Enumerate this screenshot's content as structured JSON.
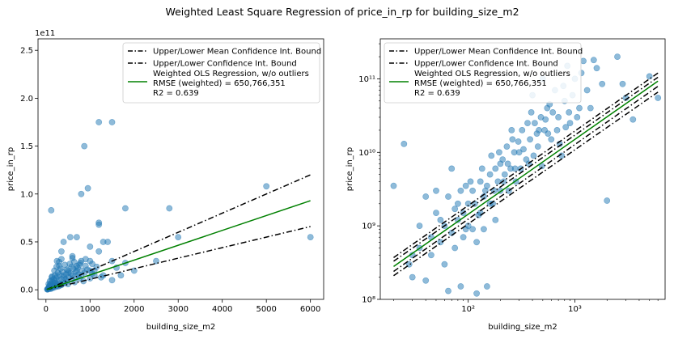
{
  "figure_title": "Weighted Least Square Regression of price_in_rp for building_size_m2",
  "colors": {
    "points": "#1f77b4",
    "fit": "#008000",
    "bounds": "#000000"
  },
  "chart_data": [
    {
      "type": "scatter",
      "scale": "linear",
      "offset_text": "1e11",
      "xlabel": "building_size_m2",
      "ylabel": "price_in_rp",
      "xlim": [
        -180,
        6300
      ],
      "ylim": [
        -10000000000.0,
        262000000000.0
      ],
      "x_ticks": [
        0,
        1000,
        2000,
        3000,
        4000,
        5000,
        6000
      ],
      "x_tick_labels": [
        "0",
        "1000",
        "2000",
        "3000",
        "4000",
        "5000",
        "6000"
      ],
      "y_ticks": [
        0,
        50000000000.0,
        100000000000.0,
        150000000000.0,
        200000000000.0,
        250000000000.0
      ],
      "y_tick_labels": [
        "0.0",
        "0.5",
        "1.0",
        "1.5",
        "2.0",
        "2.5"
      ],
      "legend": {
        "position": "top-right",
        "entries": [
          {
            "label": "Upper/Lower Mean Confidence Int. Bound",
            "style": "dashdot",
            "color": "#000000"
          },
          {
            "label": "Upper/Lower Confidence Int. Bound",
            "style": "dashdot",
            "color": "#000000"
          },
          {
            "label": "Weighted OLS Regression, w/o outliers",
            "style": "solid",
            "color": "#008000"
          }
        ],
        "extra_lines": [
          "RMSE (weighted) = 650,766,351",
          "R2 = 0.639"
        ]
      },
      "lines": {
        "x": [
          20,
          6000
        ],
        "fit": [
          290000000.0,
          93000000000.0
        ],
        "upper": [
          370000000.0,
          120000000000.0
        ],
        "lower": [
          210000000.0,
          66000000000.0
        ]
      },
      "points": [
        [
          120,
          83000000000.0
        ],
        [
          800,
          100000000000.0
        ],
        [
          950,
          106000000000.0
        ],
        [
          870,
          150000000000.0
        ],
        [
          1200,
          175000000000.0
        ],
        [
          1500,
          175000000000.0
        ],
        [
          1200,
          70000000000.0
        ],
        [
          1200,
          68000000000.0
        ],
        [
          1800,
          85000000000.0
        ],
        [
          2800,
          85000000000.0
        ],
        [
          5000,
          108000000000.0
        ],
        [
          6000,
          55000000000.0
        ],
        [
          3000,
          55000000000.0
        ],
        [
          1300,
          50000000000.0
        ],
        [
          1800,
          28000000000.0
        ],
        [
          2500,
          30000000000.0
        ],
        [
          700,
          55000000000.0
        ],
        [
          550,
          55000000000.0
        ],
        [
          400,
          50000000000.0
        ],
        [
          350,
          40000000000.0
        ],
        [
          1000,
          45000000000.0
        ],
        [
          1200,
          40000000000.0
        ],
        [
          1400,
          50000000000.0
        ],
        [
          1500,
          30000000000.0
        ],
        [
          600,
          35000000000.0
        ],
        [
          300,
          25000000000.0
        ],
        [
          250,
          30000000000.0
        ],
        [
          800,
          30000000000.0
        ],
        [
          1000,
          30000000000.0
        ],
        [
          500,
          20000000000.0
        ],
        [
          700,
          25000000000.0
        ],
        [
          900,
          25000000000.0
        ],
        [
          1100,
          20000000000.0
        ],
        [
          1300,
          15000000000.0
        ],
        [
          1500,
          10000000000.0
        ],
        [
          200,
          15000000000.0
        ],
        [
          400,
          15000000000.0
        ],
        [
          600,
          15000000000.0
        ],
        [
          800,
          15000000000.0
        ],
        [
          1000,
          12000000000.0
        ],
        [
          300,
          10000000000.0
        ],
        [
          450,
          11000000000.0
        ],
        [
          650,
          8000000000.0
        ],
        [
          850,
          9000000000.0
        ],
        [
          150,
          8000000000.0
        ],
        [
          250,
          6000000000.0
        ],
        [
          350,
          5000000000.0
        ],
        [
          500,
          6000000000.0
        ],
        [
          100,
          5000000000.0
        ],
        [
          180,
          4000000000.0
        ],
        [
          80,
          3000000000.0
        ],
        [
          120,
          2500000000.0
        ],
        [
          60,
          2000000000.0
        ],
        [
          90,
          1500000000.0
        ],
        [
          40,
          1000000000.0
        ],
        [
          70,
          1200000000.0
        ],
        [
          50,
          800000000.0
        ],
        [
          30,
          500000000.0
        ],
        [
          110,
          1000000000.0
        ],
        [
          140,
          2000000000.0
        ],
        [
          220,
          3000000000.0
        ],
        [
          280,
          3500000000.0
        ],
        [
          320,
          4500000000.0
        ],
        [
          380,
          6500000000.0
        ],
        [
          420,
          7000000000.0
        ],
        [
          480,
          9000000000.0
        ],
        [
          520,
          13000000000.0
        ],
        [
          560,
          17000000000.0
        ],
        [
          620,
          22000000000.0
        ],
        [
          680,
          19000000000.0
        ],
        [
          720,
          23000000000.0
        ],
        [
          760,
          12000000000.0
        ],
        [
          820,
          20000000000.0
        ],
        [
          880,
          18000000000.0
        ],
        [
          940,
          21000000000.0
        ],
        [
          1050,
          17000000000.0
        ],
        [
          1150,
          24000000000.0
        ],
        [
          1250,
          13000000000.0
        ],
        [
          230,
          12000000000.0
        ],
        [
          270,
          18000000000.0
        ],
        [
          330,
          22000000000.0
        ],
        [
          370,
          19000000000.0
        ],
        [
          430,
          26000000000.0
        ],
        [
          470,
          21000000000.0
        ],
        [
          540,
          27000000000.0
        ],
        [
          580,
          24000000000.0
        ],
        [
          640,
          29000000000.0
        ],
        [
          700,
          20000000000.0
        ],
        [
          760,
          26000000000.0
        ],
        [
          130,
          10000000000.0
        ],
        [
          160,
          6000000000.0
        ],
        [
          200,
          9000000000.0
        ],
        [
          260,
          14000000000.0
        ],
        [
          310,
          16000000000.0
        ],
        [
          360,
          11000000000.0
        ],
        [
          410,
          13000000000.0
        ],
        [
          460,
          16000000000.0
        ],
        [
          510,
          18000000000.0
        ],
        [
          590,
          11000000000.0
        ],
        [
          670,
          14000000000.0
        ],
        [
          740,
          16000000000.0
        ],
        [
          780,
          28000000000.0
        ],
        [
          60,
          6000000000.0
        ],
        [
          90,
          9000000000.0
        ],
        [
          140,
          14000000000.0
        ],
        [
          190,
          20000000000.0
        ],
        [
          240,
          24000000000.0
        ],
        [
          300,
          29000000000.0
        ],
        [
          350,
          32000000000.0
        ],
        [
          1050,
          27000000000.0
        ],
        [
          1100,
          15000000000.0
        ],
        [
          600,
          33000000000.0
        ],
        [
          900,
          32000000000.0
        ],
        [
          1000,
          20000000000.0
        ],
        [
          100,
          3000000000.0
        ],
        [
          150,
          3500000000.0
        ],
        [
          170,
          2200000000.0
        ],
        [
          210,
          5000000000.0
        ],
        [
          250,
          4000000000.0
        ],
        [
          290,
          6500000000.0
        ],
        [
          80,
          1500000000.0
        ],
        [
          45,
          700000000.0
        ],
        [
          35,
          350000000.0
        ],
        [
          55,
          1200000000.0
        ],
        [
          75,
          4000000000.0
        ],
        [
          95,
          6000000000.0
        ],
        [
          1600,
          23000000000.0
        ],
        [
          1700,
          15000000000.0
        ],
        [
          2000,
          20000000000.0
        ],
        [
          130,
          13000000000.0
        ],
        [
          175,
          11000000000.0
        ],
        [
          205,
          7000000000.0
        ]
      ]
    },
    {
      "type": "scatter",
      "scale": "log",
      "xlabel": "building_size_m2",
      "ylabel": "price_in_rp",
      "xlim": [
        15,
        7000
      ],
      "ylim": [
        100000000.0,
        350000000000.0
      ],
      "x_ticks": [
        100,
        1000
      ],
      "x_tick_labels": [
        "10²",
        "10³"
      ],
      "y_ticks": [
        100000000.0,
        1000000000.0,
        10000000000.0,
        100000000000.0
      ],
      "y_tick_labels": [
        "10⁸",
        "10⁹",
        "10¹⁰",
        "10¹¹"
      ],
      "legend": {
        "position": "top-left",
        "entries": [
          {
            "label": "Upper/Lower Mean Confidence Int. Bound",
            "style": "dashdot",
            "color": "#000000"
          },
          {
            "label": "Upper/Lower Confidence Int. Bound",
            "style": "dashdot",
            "color": "#000000"
          },
          {
            "label": "Weighted OLS Regression, w/o outliers",
            "style": "solid",
            "color": "#008000"
          }
        ],
        "extra_lines": [
          "RMSE (weighted) = 650,766,351",
          "R2 = 0.639"
        ]
      },
      "lines": {
        "x": [
          20,
          6000
        ],
        "fit": [
          280000000.0,
          93000000000.0
        ],
        "upper": [
          370000000.0,
          120000000000.0
        ],
        "lower": [
          210000000.0,
          66000000000.0
        ],
        "inner_upper": [
          330000000.0,
          105000000000.0
        ],
        "inner_lower": [
          240000000.0,
          79000000000.0
        ]
      },
      "points": [
        [
          20,
          3500000000.0
        ],
        [
          25,
          13000000000.0
        ],
        [
          28,
          300000000.0
        ],
        [
          30,
          200000000.0
        ],
        [
          35,
          500000000.0
        ],
        [
          40,
          2500000000.0
        ],
        [
          40,
          180000000.0
        ],
        [
          45,
          700000000.0
        ],
        [
          50,
          3000000000.0
        ],
        [
          55,
          1200000000.0
        ],
        [
          60,
          300000000.0
        ],
        [
          65,
          130000000.0
        ],
        [
          70,
          6000000000.0
        ],
        [
          75,
          1700000000.0
        ],
        [
          80,
          1200000000.0
        ],
        [
          85,
          150000000.0
        ],
        [
          90,
          1500000000.0
        ],
        [
          95,
          3500000000.0
        ],
        [
          100,
          2000000000.0
        ],
        [
          110,
          900000000.0
        ],
        [
          120,
          120000000.0
        ],
        [
          125,
          1400000000.0
        ],
        [
          130,
          4000000000.0
        ],
        [
          140,
          2500000000.0
        ],
        [
          150,
          150000000.0
        ],
        [
          150,
          3500000000.0
        ],
        [
          160,
          5000000000.0
        ],
        [
          170,
          2000000000.0
        ],
        [
          180,
          6000000000.0
        ],
        [
          190,
          4000000000.0
        ],
        [
          200,
          3000000000.0
        ],
        [
          210,
          8000000000.0
        ],
        [
          220,
          5000000000.0
        ],
        [
          230,
          12000000000.0
        ],
        [
          250,
          6000000000.0
        ],
        [
          260,
          15000000000.0
        ],
        [
          280,
          4000000000.0
        ],
        [
          300,
          10000000000.0
        ],
        [
          320,
          20000000000.0
        ],
        [
          350,
          8000000000.0
        ],
        [
          380,
          15000000000.0
        ],
        [
          400,
          60000000000.0
        ],
        [
          420,
          25000000000.0
        ],
        [
          450,
          12000000000.0
        ],
        [
          480,
          30000000000.0
        ],
        [
          500,
          100000000000.0
        ],
        [
          520,
          20000000000.0
        ],
        [
          550,
          40000000000.0
        ],
        [
          600,
          15000000000.0
        ],
        [
          650,
          70000000000.0
        ],
        [
          700,
          30000000000.0
        ],
        [
          750,
          9000000000.0
        ],
        [
          800,
          50000000000.0
        ],
        [
          850,
          150000000000.0
        ],
        [
          900,
          25000000000.0
        ],
        [
          1000,
          100000000000.0
        ],
        [
          1100,
          40000000000.0
        ],
        [
          1200,
          175000000000.0
        ],
        [
          1300,
          70000000000.0
        ],
        [
          1500,
          180000000000.0
        ],
        [
          1800,
          85000000000.0
        ],
        [
          2000,
          2200000000.0
        ],
        [
          2500,
          200000000000.0
        ],
        [
          2800,
          85000000000.0
        ],
        [
          3000,
          55000000000.0
        ],
        [
          3500,
          28000000000.0
        ],
        [
          5000,
          108000000000.0
        ],
        [
          6000,
          55000000000.0
        ],
        [
          60,
          1000000000.0
        ],
        [
          70,
          800000000.0
        ],
        [
          80,
          2000000000.0
        ],
        [
          90,
          700000000.0
        ],
        [
          100,
          1000000000.0
        ],
        [
          110,
          3000000000.0
        ],
        [
          120,
          600000000.0
        ],
        [
          130,
          1500000000.0
        ],
        [
          140,
          900000000.0
        ],
        [
          160,
          2000000000.0
        ],
        [
          180,
          1200000000.0
        ],
        [
          200,
          7000000000.0
        ],
        [
          240,
          3000000000.0
        ],
        [
          270,
          10000000000.0
        ],
        [
          310,
          6000000000.0
        ],
        [
          360,
          25000000000.0
        ],
        [
          410,
          9000000000.0
        ],
        [
          460,
          20000000000.0
        ],
        [
          560,
          18000000000.0
        ],
        [
          620,
          35000000000.0
        ],
        [
          720,
          13000000000.0
        ],
        [
          820,
          22000000000.0
        ],
        [
          950,
          60000000000.0
        ],
        [
          1050,
          30000000000.0
        ],
        [
          1150,
          120000000000.0
        ],
        [
          1400,
          40000000000.0
        ],
        [
          1600,
          140000000000.0
        ],
        [
          30,
          400000000.0
        ],
        [
          35,
          1000000000.0
        ],
        [
          45,
          400000000.0
        ],
        [
          50,
          1500000000.0
        ],
        [
          55,
          600000000.0
        ],
        [
          65,
          2500000000.0
        ],
        [
          75,
          500000000.0
        ],
        [
          85,
          3000000000.0
        ],
        [
          95,
          900000000.0
        ],
        [
          105,
          4000000000.0
        ],
        [
          115,
          2000000000.0
        ],
        [
          135,
          6000000000.0
        ],
        [
          145,
          3000000000.0
        ],
        [
          165,
          9000000000.0
        ],
        [
          175,
          3000000000.0
        ],
        [
          195,
          10000000000.0
        ],
        [
          215,
          4000000000.0
        ],
        [
          235,
          7000000000.0
        ],
        [
          255,
          20000000000.0
        ],
        [
          275,
          6000000000.0
        ],
        [
          295,
          14000000000.0
        ],
        [
          330,
          11000000000.0
        ],
        [
          370,
          7000000000.0
        ],
        [
          390,
          35000000000.0
        ],
        [
          440,
          18000000000.0
        ],
        [
          490,
          6500000000.0
        ],
        [
          530,
          28000000000.0
        ],
        [
          580,
          45000000000.0
        ],
        [
          680,
          20000000000.0
        ],
        [
          780,
          80000000000.0
        ],
        [
          880,
          35000000000.0
        ]
      ]
    }
  ]
}
